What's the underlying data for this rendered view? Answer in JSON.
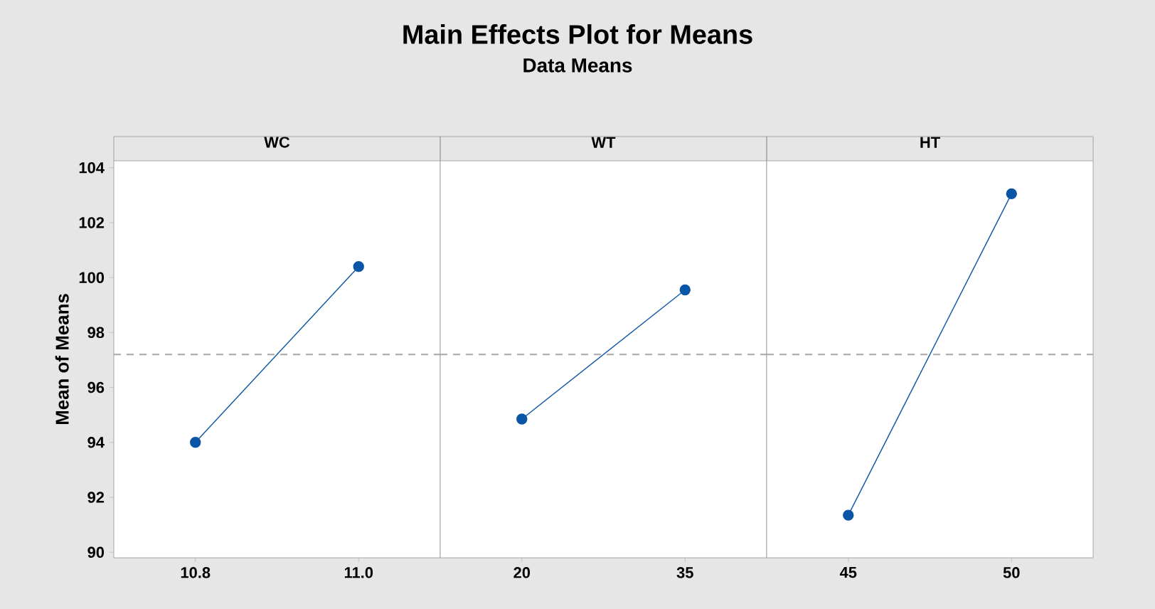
{
  "chart_data": [
    {
      "type": "other",
      "title": "Main Effects Plot for Means",
      "subtitle": "Data Means"
    },
    {
      "type": "line",
      "title": "WC",
      "ylabel": "Mean of Means",
      "categories": [
        "10.8",
        "11.0"
      ],
      "values": [
        94.0,
        100.4
      ],
      "color": "#0a55a5",
      "marker": "circle",
      "ylim": [
        89.8,
        104.25
      ],
      "yticks": [
        90,
        92,
        94,
        96,
        98,
        100,
        102,
        104
      ],
      "ref_lines": [
        {
          "axis": "y",
          "value": 97.2,
          "color": "#a6a6a6",
          "line_style": "dashed"
        }
      ]
    },
    {
      "type": "line",
      "title": "WT",
      "categories": [
        "20",
        "35"
      ],
      "values": [
        94.85,
        99.55
      ],
      "color": "#0a55a5",
      "marker": "circle",
      "ylim": [
        89.8,
        104.25
      ],
      "yticks": [
        90,
        92,
        94,
        96,
        98,
        100,
        102,
        104
      ],
      "tick_labels": "x",
      "ref_lines": [
        {
          "axis": "y",
          "value": 97.2,
          "color": "#a6a6a6",
          "line_style": "dashed"
        }
      ]
    },
    {
      "type": "line",
      "title": "HT",
      "categories": [
        "45",
        "50"
      ],
      "values": [
        91.35,
        103.05
      ],
      "color": "#0a55a5",
      "marker": "circle",
      "ylim": [
        89.8,
        104.25
      ],
      "yticks": [
        90,
        92,
        94,
        96,
        98,
        100,
        102,
        104
      ],
      "tick_labels": "x",
      "ref_lines": [
        {
          "axis": "y",
          "value": 97.2,
          "color": "#a6a6a6",
          "line_style": "dashed"
        }
      ]
    }
  ]
}
